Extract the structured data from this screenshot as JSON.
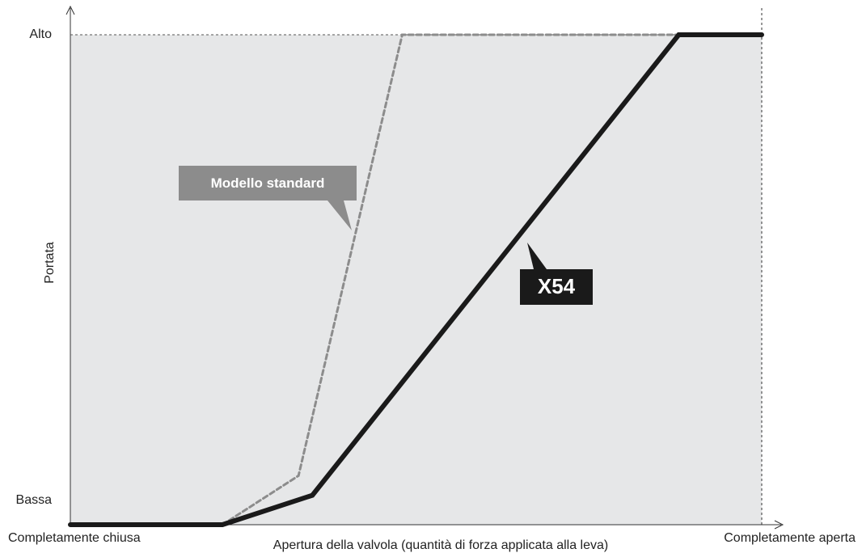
{
  "chart_data": {
    "type": "line",
    "x_label": "Apertura della valvola (quantità di forza applicata alla leva)",
    "y_label": "Portata",
    "xlim": [
      0,
      100
    ],
    "ylim": [
      0,
      100
    ],
    "xticks": [
      {
        "value": 0,
        "label": "Completamente chiusa"
      },
      {
        "value": 100,
        "label": "Completamente aperta"
      }
    ],
    "yticks": [
      {
        "value": 5,
        "label": "Bassa"
      },
      {
        "value": 100,
        "label": "Alto"
      }
    ],
    "series": [
      {
        "name": "Modello standard",
        "color": "#8c8c8c",
        "dashed": true,
        "x": [
          22,
          33,
          48,
          88
        ],
        "values": [
          0,
          10,
          100,
          100
        ]
      },
      {
        "name": "X54",
        "color": "#1a1a1a",
        "dashed": false,
        "x": [
          0,
          22,
          35,
          88,
          100
        ],
        "values": [
          0,
          0,
          6,
          100,
          100
        ]
      }
    ]
  }
}
